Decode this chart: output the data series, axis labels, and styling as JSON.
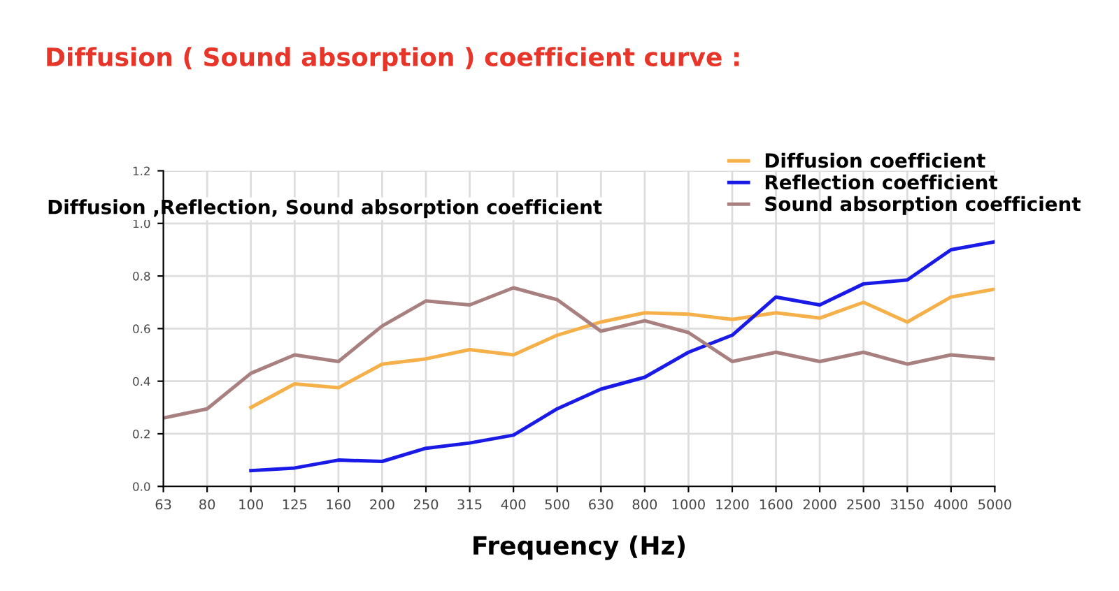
{
  "chart_data": {
    "type": "line",
    "title": "Diffusion ( Sound absorption ) coefficient curve :",
    "ylabel": "Diffusion ,Reflection, Sound absorption coefficient",
    "xlabel": "Frequency (Hz)",
    "categories": [
      "63",
      "80",
      "100",
      "125",
      "160",
      "200",
      "250",
      "315",
      "400",
      "500",
      "630",
      "800",
      "1000",
      "1200",
      "1600",
      "2000",
      "2500",
      "3150",
      "4000",
      "5000"
    ],
    "series": [
      {
        "name": "Diffusion coefficient",
        "color": "#f5b04a",
        "values": [
          null,
          null,
          0.3,
          0.39,
          0.375,
          0.465,
          0.485,
          0.52,
          0.5,
          0.575,
          0.625,
          0.66,
          0.655,
          0.635,
          0.66,
          0.64,
          0.7,
          0.625,
          0.72,
          0.75
        ]
      },
      {
        "name": "Reflection coefficient",
        "color": "#1a1ae6",
        "values": [
          null,
          null,
          0.06,
          0.07,
          0.1,
          0.095,
          0.145,
          0.165,
          0.195,
          0.295,
          0.37,
          0.415,
          0.51,
          0.575,
          0.72,
          0.69,
          0.77,
          0.785,
          0.9,
          0.93
        ]
      },
      {
        "name": "Sound absorption coefficient",
        "color": "#a88080",
        "values": [
          0.26,
          0.295,
          0.43,
          0.5,
          0.475,
          0.61,
          0.705,
          0.69,
          0.755,
          0.71,
          0.59,
          0.63,
          0.585,
          0.475,
          0.51,
          0.475,
          0.51,
          0.465,
          0.5,
          0.485
        ]
      }
    ],
    "ylim": [
      0,
      1.2
    ],
    "yticks": [
      "0.0",
      0.2,
      0.4,
      0.6,
      0.8,
      "1.0",
      1.2
    ],
    "grid": true,
    "legend": "top right",
    "marker": "none",
    "line_style": "solid"
  }
}
